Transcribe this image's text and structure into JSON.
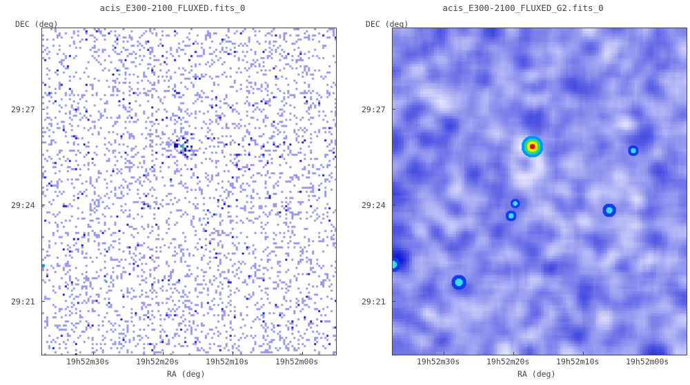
{
  "panels": [
    {
      "title": "acis_E300-2100_FLUXED.fits_0",
      "y_axis_label": "DEC (deg)",
      "x_axis_label": "RA (deg)",
      "y_ticks": [
        "29:27",
        "29:24",
        "29:21"
      ],
      "x_ticks": [
        "19h52m30s",
        "19h52m20s",
        "19h52m10s",
        "19h52m00s"
      ],
      "rendering": "raw-counts"
    },
    {
      "title": "acis_E300-2100_FLUXED_G2.fits_0",
      "y_axis_label": "DEC (deg)",
      "x_axis_label": "RA (deg)",
      "y_ticks": [
        "29:27",
        "29:24",
        "29:21"
      ],
      "x_ticks": [
        "19h52m30s",
        "19h52m20s",
        "19h52m10s",
        "19h52m00s"
      ],
      "rendering": "smoothed"
    }
  ],
  "colors": {
    "raw_pixel": "#9999ee",
    "raw_pixel_bright": "#2222dd",
    "smooth_low": "#ffffff",
    "smooth_mid": "#3344ee",
    "smooth_high": "#0000aa",
    "source_core": "#ff0000",
    "source_ring": "#ffee00",
    "source_halo": "#00ccff"
  }
}
